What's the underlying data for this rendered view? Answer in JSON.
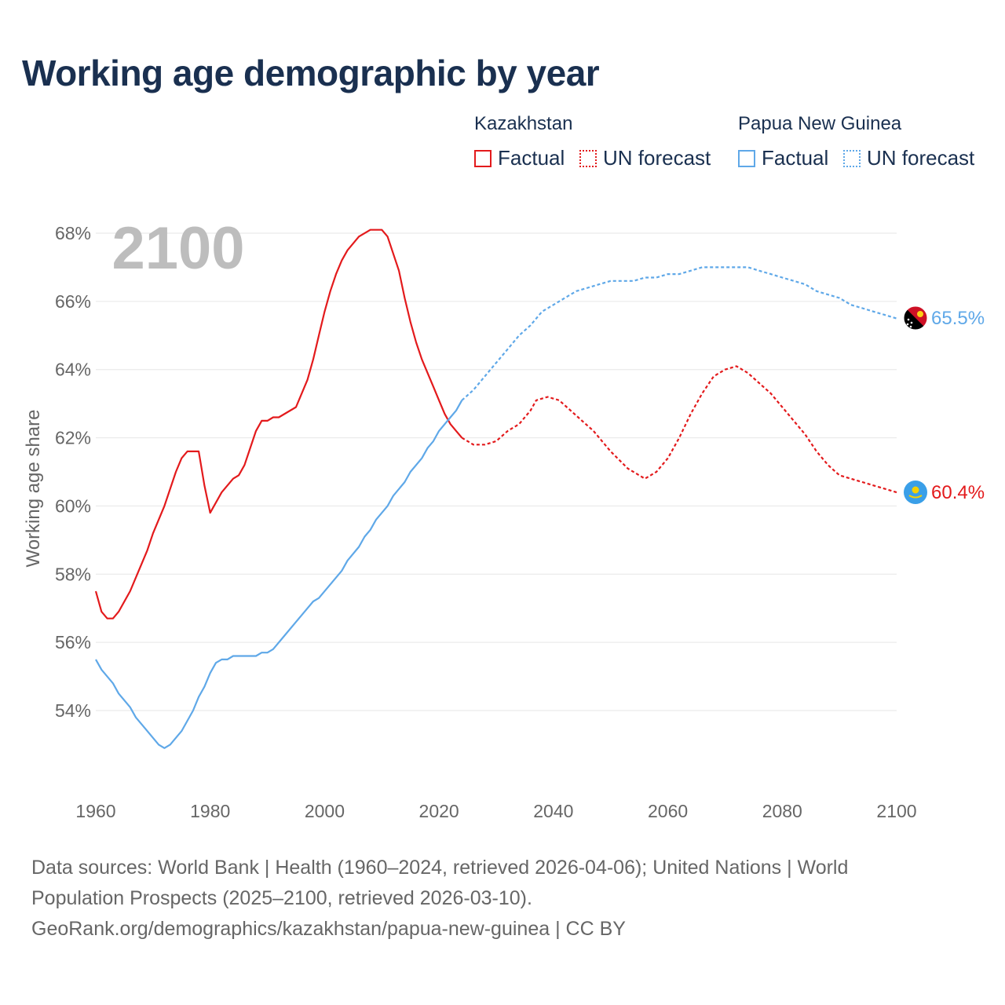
{
  "title": "Working age demographic by year",
  "legend": {
    "groups": [
      {
        "name": "Kazakhstan",
        "color": "#e31a1c",
        "factual_label": "Factual",
        "forecast_label": "UN forecast"
      },
      {
        "name": "Papua New Guinea",
        "color": "#5fa8e8",
        "factual_label": "Factual",
        "forecast_label": "UN forecast"
      }
    ]
  },
  "year_watermark": "2100",
  "source_lines": [
    "Data sources: World Bank | Health (1960–2024, retrieved 2026-04-06); United Nations | World",
    "Population Prospects (2025–2100, retrieved 2026-03-10).",
    "GeoRank.org/demographics/kazakhstan/papua-new-guinea | CC BY"
  ],
  "icons": {
    "kazakhstan": "kazakhstan-flag-icon",
    "png": "papua-new-guinea-flag-icon"
  },
  "chart_data": {
    "type": "line",
    "title": "Working age demographic by year",
    "ylabel": "Working age share",
    "xlabel": "",
    "xlim": [
      1960,
      2100
    ],
    "ylim": [
      52,
      69
    ],
    "x_ticks": [
      1960,
      1980,
      2000,
      2020,
      2040,
      2060,
      2080,
      2100
    ],
    "y_ticks": [
      54,
      56,
      58,
      60,
      62,
      64,
      66,
      68
    ],
    "y_tick_labels": [
      "54%",
      "56%",
      "58%",
      "60%",
      "62%",
      "64%",
      "66%",
      "68%"
    ],
    "grid": true,
    "factual_end_year": 2024,
    "series": [
      {
        "name": "Kazakhstan",
        "color": "#e31a1c",
        "end_label": "60.4%",
        "points": [
          [
            1960,
            57.5
          ],
          [
            1961,
            56.9
          ],
          [
            1962,
            56.7
          ],
          [
            1963,
            56.7
          ],
          [
            1964,
            56.9
          ],
          [
            1966,
            57.5
          ],
          [
            1968,
            58.3
          ],
          [
            1969,
            58.7
          ],
          [
            1970,
            59.2
          ],
          [
            1972,
            60.0
          ],
          [
            1974,
            61.0
          ],
          [
            1975,
            61.4
          ],
          [
            1976,
            61.6
          ],
          [
            1978,
            61.6
          ],
          [
            1979,
            60.6
          ],
          [
            1980,
            59.8
          ],
          [
            1982,
            60.4
          ],
          [
            1984,
            60.8
          ],
          [
            1985,
            60.9
          ],
          [
            1986,
            61.2
          ],
          [
            1987,
            61.7
          ],
          [
            1988,
            62.2
          ],
          [
            1989,
            62.5
          ],
          [
            1990,
            62.5
          ],
          [
            1991,
            62.6
          ],
          [
            1992,
            62.6
          ],
          [
            1995,
            62.9
          ],
          [
            1997,
            63.7
          ],
          [
            1998,
            64.3
          ],
          [
            1999,
            65.0
          ],
          [
            2000,
            65.7
          ],
          [
            2001,
            66.3
          ],
          [
            2002,
            66.8
          ],
          [
            2003,
            67.2
          ],
          [
            2004,
            67.5
          ],
          [
            2006,
            67.9
          ],
          [
            2008,
            68.1
          ],
          [
            2010,
            68.1
          ],
          [
            2011,
            67.9
          ],
          [
            2013,
            66.9
          ],
          [
            2014,
            66.1
          ],
          [
            2015,
            65.4
          ],
          [
            2016,
            64.8
          ],
          [
            2017,
            64.3
          ],
          [
            2018,
            63.9
          ],
          [
            2019,
            63.5
          ],
          [
            2020,
            63.1
          ],
          [
            2021,
            62.7
          ],
          [
            2022,
            62.4
          ],
          [
            2023,
            62.2
          ],
          [
            2024,
            62.0
          ],
          [
            2026,
            61.8
          ],
          [
            2028,
            61.8
          ],
          [
            2030,
            61.9
          ],
          [
            2032,
            62.2
          ],
          [
            2034,
            62.4
          ],
          [
            2036,
            62.8
          ],
          [
            2037,
            63.1
          ],
          [
            2039,
            63.2
          ],
          [
            2041,
            63.1
          ],
          [
            2043,
            62.8
          ],
          [
            2045,
            62.5
          ],
          [
            2047,
            62.2
          ],
          [
            2050,
            61.6
          ],
          [
            2053,
            61.1
          ],
          [
            2056,
            60.8
          ],
          [
            2058,
            61.0
          ],
          [
            2060,
            61.4
          ],
          [
            2062,
            62.0
          ],
          [
            2064,
            62.7
          ],
          [
            2066,
            63.3
          ],
          [
            2068,
            63.8
          ],
          [
            2070,
            64.0
          ],
          [
            2072,
            64.1
          ],
          [
            2074,
            63.9
          ],
          [
            2076,
            63.6
          ],
          [
            2078,
            63.3
          ],
          [
            2080,
            62.9
          ],
          [
            2082,
            62.5
          ],
          [
            2084,
            62.1
          ],
          [
            2086,
            61.6
          ],
          [
            2088,
            61.2
          ],
          [
            2090,
            60.9
          ],
          [
            2092,
            60.8
          ],
          [
            2094,
            60.7
          ],
          [
            2096,
            60.6
          ],
          [
            2098,
            60.5
          ],
          [
            2100,
            60.4
          ]
        ]
      },
      {
        "name": "Papua New Guinea",
        "color": "#5fa8e8",
        "end_label": "65.5%",
        "points": [
          [
            1960,
            55.5
          ],
          [
            1961,
            55.2
          ],
          [
            1963,
            54.8
          ],
          [
            1964,
            54.5
          ],
          [
            1966,
            54.1
          ],
          [
            1967,
            53.8
          ],
          [
            1969,
            53.4
          ],
          [
            1971,
            53.0
          ],
          [
            1972,
            52.9
          ],
          [
            1973,
            53.0
          ],
          [
            1975,
            53.4
          ],
          [
            1977,
            54.0
          ],
          [
            1978,
            54.4
          ],
          [
            1979,
            54.7
          ],
          [
            1980,
            55.1
          ],
          [
            1981,
            55.4
          ],
          [
            1982,
            55.5
          ],
          [
            1983,
            55.5
          ],
          [
            1984,
            55.6
          ],
          [
            1985,
            55.6
          ],
          [
            1986,
            55.6
          ],
          [
            1987,
            55.6
          ],
          [
            1988,
            55.6
          ],
          [
            1989,
            55.7
          ],
          [
            1990,
            55.7
          ],
          [
            1991,
            55.8
          ],
          [
            1993,
            56.2
          ],
          [
            1995,
            56.6
          ],
          [
            1997,
            57.0
          ],
          [
            1998,
            57.2
          ],
          [
            1999,
            57.3
          ],
          [
            2001,
            57.7
          ],
          [
            2003,
            58.1
          ],
          [
            2004,
            58.4
          ],
          [
            2006,
            58.8
          ],
          [
            2007,
            59.1
          ],
          [
            2008,
            59.3
          ],
          [
            2009,
            59.6
          ],
          [
            2011,
            60.0
          ],
          [
            2012,
            60.3
          ],
          [
            2014,
            60.7
          ],
          [
            2015,
            61.0
          ],
          [
            2017,
            61.4
          ],
          [
            2018,
            61.7
          ],
          [
            2019,
            61.9
          ],
          [
            2020,
            62.2
          ],
          [
            2021,
            62.4
          ],
          [
            2022,
            62.6
          ],
          [
            2023,
            62.8
          ],
          [
            2024,
            63.1
          ],
          [
            2026,
            63.4
          ],
          [
            2028,
            63.8
          ],
          [
            2030,
            64.2
          ],
          [
            2032,
            64.6
          ],
          [
            2034,
            65.0
          ],
          [
            2036,
            65.3
          ],
          [
            2038,
            65.7
          ],
          [
            2040,
            65.9
          ],
          [
            2042,
            66.1
          ],
          [
            2044,
            66.3
          ],
          [
            2046,
            66.4
          ],
          [
            2048,
            66.5
          ],
          [
            2050,
            66.6
          ],
          [
            2052,
            66.6
          ],
          [
            2054,
            66.6
          ],
          [
            2056,
            66.7
          ],
          [
            2058,
            66.7
          ],
          [
            2060,
            66.8
          ],
          [
            2062,
            66.8
          ],
          [
            2064,
            66.9
          ],
          [
            2066,
            67.0
          ],
          [
            2068,
            67.0
          ],
          [
            2070,
            67.0
          ],
          [
            2072,
            67.0
          ],
          [
            2074,
            67.0
          ],
          [
            2076,
            66.9
          ],
          [
            2078,
            66.8
          ],
          [
            2080,
            66.7
          ],
          [
            2082,
            66.6
          ],
          [
            2084,
            66.5
          ],
          [
            2086,
            66.3
          ],
          [
            2088,
            66.2
          ],
          [
            2090,
            66.1
          ],
          [
            2092,
            65.9
          ],
          [
            2094,
            65.8
          ],
          [
            2096,
            65.7
          ],
          [
            2098,
            65.6
          ],
          [
            2100,
            65.5
          ]
        ]
      }
    ]
  }
}
